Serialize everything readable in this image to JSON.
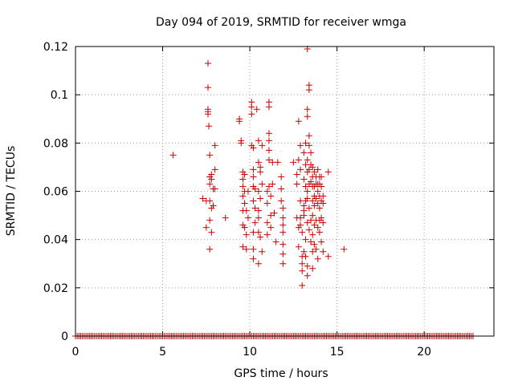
{
  "chart_data": {
    "type": "scatter",
    "title": "Day 094 of 2019, SRMTID for receiver wmga",
    "xlabel": "GPS time / hours",
    "ylabel": "SRMTID / TECUs",
    "xlim": [
      0,
      24
    ],
    "ylim": [
      0,
      0.12
    ],
    "x_ticks": [
      0,
      5,
      10,
      15,
      20
    ],
    "y_ticks": [
      0,
      0.02,
      0.04,
      0.06,
      0.08,
      0.1,
      0.12
    ],
    "x_tick_labels": [
      "0",
      "5",
      "10",
      "15",
      "20"
    ],
    "y_tick_labels": [
      "0",
      "0.02",
      "0.04",
      "0.06",
      "0.08",
      "0.1",
      "0.12"
    ],
    "grid": true,
    "marker": "+",
    "series_color": "#cc0000",
    "baseline_series": {
      "y": 0,
      "x_range": [
        0,
        22.8
      ],
      "note": "near-continuous row of zero-valued samples"
    },
    "points": [
      [
        5.6,
        0.075
      ],
      [
        7.3,
        0.057
      ],
      [
        7.5,
        0.056
      ],
      [
        7.5,
        0.045
      ],
      [
        7.6,
        0.113
      ],
      [
        7.6,
        0.103
      ],
      [
        7.6,
        0.094
      ],
      [
        7.6,
        0.093
      ],
      [
        7.6,
        0.092
      ],
      [
        7.65,
        0.087
      ],
      [
        7.7,
        0.075
      ],
      [
        7.7,
        0.066
      ],
      [
        7.7,
        0.063
      ],
      [
        7.7,
        0.056
      ],
      [
        7.7,
        0.048
      ],
      [
        7.7,
        0.036
      ],
      [
        7.8,
        0.067
      ],
      [
        7.8,
        0.065
      ],
      [
        7.8,
        0.053
      ],
      [
        7.8,
        0.043
      ],
      [
        7.9,
        0.061
      ],
      [
        7.9,
        0.054
      ],
      [
        8.0,
        0.079
      ],
      [
        8.0,
        0.069
      ],
      [
        8.0,
        0.061
      ],
      [
        8.6,
        0.049
      ],
      [
        9.4,
        0.09
      ],
      [
        9.4,
        0.089
      ],
      [
        9.5,
        0.081
      ],
      [
        9.5,
        0.08
      ],
      [
        9.6,
        0.068
      ],
      [
        9.6,
        0.065
      ],
      [
        9.6,
        0.062
      ],
      [
        9.6,
        0.058
      ],
      [
        9.6,
        0.052
      ],
      [
        9.6,
        0.046
      ],
      [
        9.6,
        0.037
      ],
      [
        9.7,
        0.067
      ],
      [
        9.7,
        0.06
      ],
      [
        9.7,
        0.055
      ],
      [
        9.7,
        0.045
      ],
      [
        9.8,
        0.052
      ],
      [
        9.8,
        0.042
      ],
      [
        9.8,
        0.036
      ],
      [
        9.9,
        0.06
      ],
      [
        9.9,
        0.049
      ],
      [
        10.1,
        0.097
      ],
      [
        10.1,
        0.095
      ],
      [
        10.1,
        0.092
      ],
      [
        10.1,
        0.079
      ],
      [
        10.2,
        0.078
      ],
      [
        10.2,
        0.069
      ],
      [
        10.2,
        0.066
      ],
      [
        10.2,
        0.062
      ],
      [
        10.2,
        0.056
      ],
      [
        10.2,
        0.043
      ],
      [
        10.2,
        0.036
      ],
      [
        10.2,
        0.032
      ],
      [
        10.3,
        0.061
      ],
      [
        10.3,
        0.053
      ],
      [
        10.3,
        0.047
      ],
      [
        10.4,
        0.094
      ],
      [
        10.5,
        0.081
      ],
      [
        10.5,
        0.072
      ],
      [
        10.5,
        0.06
      ],
      [
        10.5,
        0.052
      ],
      [
        10.5,
        0.049
      ],
      [
        10.5,
        0.043
      ],
      [
        10.5,
        0.03
      ],
      [
        10.6,
        0.07
      ],
      [
        10.6,
        0.068
      ],
      [
        10.6,
        0.057
      ],
      [
        10.6,
        0.041
      ],
      [
        10.7,
        0.079
      ],
      [
        10.7,
        0.063
      ],
      [
        10.7,
        0.035
      ],
      [
        11.0,
        0.06
      ],
      [
        11.0,
        0.055
      ],
      [
        11.0,
        0.047
      ],
      [
        11.0,
        0.042
      ],
      [
        11.1,
        0.097
      ],
      [
        11.1,
        0.095
      ],
      [
        11.1,
        0.084
      ],
      [
        11.1,
        0.081
      ],
      [
        11.1,
        0.077
      ],
      [
        11.1,
        0.073
      ],
      [
        11.1,
        0.062
      ],
      [
        11.2,
        0.058
      ],
      [
        11.2,
        0.05
      ],
      [
        11.2,
        0.045
      ],
      [
        11.3,
        0.072
      ],
      [
        11.3,
        0.063
      ],
      [
        11.4,
        0.051
      ],
      [
        11.5,
        0.039
      ],
      [
        11.6,
        0.072
      ],
      [
        11.8,
        0.066
      ],
      [
        11.8,
        0.061
      ],
      [
        11.8,
        0.056
      ],
      [
        11.9,
        0.053
      ],
      [
        11.9,
        0.049
      ],
      [
        11.9,
        0.046
      ],
      [
        11.9,
        0.043
      ],
      [
        11.9,
        0.038
      ],
      [
        11.9,
        0.034
      ],
      [
        11.9,
        0.03
      ],
      [
        12.5,
        0.072
      ],
      [
        12.7,
        0.067
      ],
      [
        12.7,
        0.063
      ],
      [
        12.7,
        0.049
      ],
      [
        12.8,
        0.089
      ],
      [
        12.8,
        0.073
      ],
      [
        12.8,
        0.045
      ],
      [
        12.8,
        0.037
      ],
      [
        12.9,
        0.079
      ],
      [
        12.9,
        0.069
      ],
      [
        12.9,
        0.056
      ],
      [
        12.9,
        0.049
      ],
      [
        12.9,
        0.046
      ],
      [
        13.0,
        0.043
      ],
      [
        13.0,
        0.033
      ],
      [
        13.0,
        0.03
      ],
      [
        13.0,
        0.027
      ],
      [
        13.0,
        0.021
      ],
      [
        13.1,
        0.076
      ],
      [
        13.1,
        0.065
      ],
      [
        13.1,
        0.054
      ],
      [
        13.1,
        0.052
      ],
      [
        13.1,
        0.05
      ],
      [
        13.1,
        0.035
      ],
      [
        13.2,
        0.08
      ],
      [
        13.2,
        0.071
      ],
      [
        13.2,
        0.062
      ],
      [
        13.2,
        0.056
      ],
      [
        13.2,
        0.04
      ],
      [
        13.2,
        0.033
      ],
      [
        13.3,
        0.119
      ],
      [
        13.3,
        0.094
      ],
      [
        13.3,
        0.091
      ],
      [
        13.3,
        0.073
      ],
      [
        13.3,
        0.068
      ],
      [
        13.3,
        0.06
      ],
      [
        13.3,
        0.057
      ],
      [
        13.3,
        0.047
      ],
      [
        13.3,
        0.029
      ],
      [
        13.3,
        0.025
      ],
      [
        13.4,
        0.104
      ],
      [
        13.4,
        0.102
      ],
      [
        13.4,
        0.083
      ],
      [
        13.4,
        0.079
      ],
      [
        13.4,
        0.069
      ],
      [
        13.4,
        0.063
      ],
      [
        13.4,
        0.053
      ],
      [
        13.4,
        0.044
      ],
      [
        13.5,
        0.076
      ],
      [
        13.5,
        0.071
      ],
      [
        13.5,
        0.064
      ],
      [
        13.5,
        0.048
      ],
      [
        13.5,
        0.039
      ],
      [
        13.6,
        0.07
      ],
      [
        13.6,
        0.066
      ],
      [
        13.6,
        0.062
      ],
      [
        13.6,
        0.056
      ],
      [
        13.6,
        0.05
      ],
      [
        13.6,
        0.042
      ],
      [
        13.6,
        0.035
      ],
      [
        13.6,
        0.028
      ],
      [
        13.7,
        0.068
      ],
      [
        13.7,
        0.062
      ],
      [
        13.7,
        0.058
      ],
      [
        13.7,
        0.054
      ],
      [
        13.7,
        0.046
      ],
      [
        13.7,
        0.038
      ],
      [
        13.8,
        0.066
      ],
      [
        13.8,
        0.063
      ],
      [
        13.8,
        0.057
      ],
      [
        13.8,
        0.048
      ],
      [
        13.8,
        0.036
      ],
      [
        13.9,
        0.069
      ],
      [
        13.9,
        0.063
      ],
      [
        13.9,
        0.06
      ],
      [
        13.9,
        0.055
      ],
      [
        13.9,
        0.045
      ],
      [
        13.9,
        0.032
      ],
      [
        14.0,
        0.066
      ],
      [
        14.0,
        0.063
      ],
      [
        14.0,
        0.058
      ],
      [
        14.0,
        0.053
      ],
      [
        14.0,
        0.048
      ],
      [
        14.0,
        0.043
      ],
      [
        14.1,
        0.066
      ],
      [
        14.1,
        0.062
      ],
      [
        14.1,
        0.056
      ],
      [
        14.1,
        0.049
      ],
      [
        14.1,
        0.039
      ],
      [
        14.2,
        0.058
      ],
      [
        14.2,
        0.055
      ],
      [
        14.2,
        0.047
      ],
      [
        14.2,
        0.035
      ],
      [
        14.5,
        0.068
      ],
      [
        14.5,
        0.033
      ],
      [
        15.4,
        0.036
      ]
    ]
  }
}
